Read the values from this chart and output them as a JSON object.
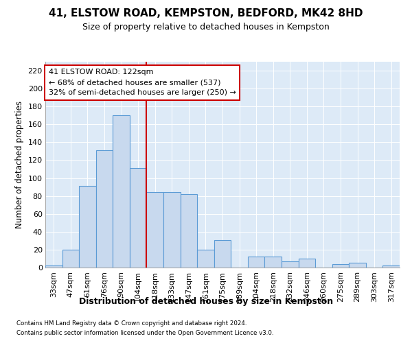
{
  "title1": "41, ELSTOW ROAD, KEMPSTON, BEDFORD, MK42 8HD",
  "title2": "Size of property relative to detached houses in Kempston",
  "xlabel": "Distribution of detached houses by size in Kempston",
  "ylabel": "Number of detached properties",
  "categories": [
    "33sqm",
    "47sqm",
    "61sqm",
    "76sqm",
    "90sqm",
    "104sqm",
    "118sqm",
    "133sqm",
    "147sqm",
    "161sqm",
    "175sqm",
    "189sqm",
    "204sqm",
    "218sqm",
    "232sqm",
    "246sqm",
    "260sqm",
    "275sqm",
    "289sqm",
    "303sqm",
    "317sqm"
  ],
  "values": [
    2,
    20,
    91,
    131,
    170,
    111,
    84,
    84,
    82,
    20,
    31,
    0,
    12,
    12,
    7,
    10,
    0,
    4,
    5,
    0,
    2
  ],
  "bar_color": "#c8d9ee",
  "bar_edge_color": "#5b9bd5",
  "annotation_text_line1": "41 ELSTOW ROAD: 122sqm",
  "annotation_text_line2": "← 68% of detached houses are smaller (537)",
  "annotation_text_line3": "32% of semi-detached houses are larger (250) →",
  "vline_color": "#cc0000",
  "vline_x_index": 6.0,
  "ylim": [
    0,
    230
  ],
  "yticks": [
    0,
    20,
    40,
    60,
    80,
    100,
    120,
    140,
    160,
    180,
    200,
    220
  ],
  "grid_color": "#c0d0e8",
  "background_color": "#ddeaf7",
  "title1_fontsize": 11,
  "title2_fontsize": 9,
  "ylabel_fontsize": 8.5,
  "xlabel_fontsize": 9,
  "footnote1": "Contains HM Land Registry data © Crown copyright and database right 2024.",
  "footnote2": "Contains public sector information licensed under the Open Government Licence v3.0."
}
